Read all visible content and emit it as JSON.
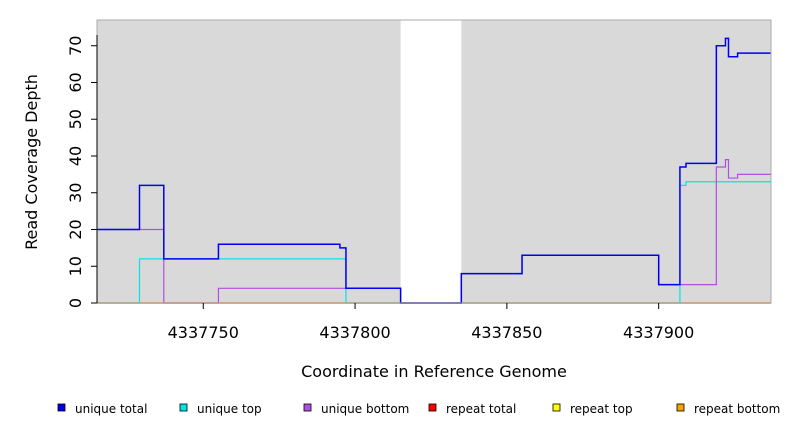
{
  "chart_data": {
    "type": "line",
    "title": "",
    "xlabel": "Coordinate in Reference Genome",
    "ylabel": "Read Coverage Depth",
    "xlim": [
      4337715,
      4337937
    ],
    "ylim": [
      0,
      77
    ],
    "x_ticks": [
      4337750,
      4337800,
      4337850,
      4337900
    ],
    "x_tick_labels": [
      "4337750",
      "4337800",
      "4337850",
      "4337900"
    ],
    "y_ticks": [
      0,
      10,
      20,
      30,
      40,
      50,
      60,
      70
    ],
    "y_tick_labels": [
      "0",
      "10",
      "20",
      "30",
      "40",
      "50",
      "60",
      "70"
    ],
    "background_color": "#d9d9d9",
    "gap_region": [
      4337815,
      4337835
    ],
    "step": true,
    "grid": false,
    "legend_position": "bottom",
    "series": [
      {
        "name": "unique total",
        "color": "#0000ee",
        "x": [
          4337715,
          4337729,
          4337737,
          4337755,
          4337795,
          4337797,
          4337815,
          4337835,
          4337855,
          4337900,
          4337907,
          4337909,
          4337912,
          4337919,
          4337922,
          4337923,
          4337926,
          4337937
        ],
        "y": [
          20,
          32,
          12,
          16,
          15,
          4,
          0,
          8,
          13,
          5,
          37,
          38,
          38,
          70,
          72,
          67,
          68,
          68
        ]
      },
      {
        "name": "unique top",
        "color": "#00e5e5",
        "x": [
          4337715,
          4337729,
          4337737,
          4337755,
          4337795,
          4337797,
          4337815,
          4337835,
          4337855,
          4337900,
          4337907,
          4337909,
          4337912,
          4337919,
          4337922,
          4337923,
          4337926,
          4337937
        ],
        "y": [
          0,
          12,
          12,
          12,
          12,
          0,
          0,
          0,
          0,
          0,
          32,
          33,
          33,
          33,
          33,
          33,
          33,
          33
        ]
      },
      {
        "name": "unique bottom",
        "color": "#b04fe0",
        "x": [
          4337715,
          4337729,
          4337737,
          4337755,
          4337795,
          4337797,
          4337815,
          4337835,
          4337855,
          4337900,
          4337907,
          4337909,
          4337912,
          4337919,
          4337922,
          4337923,
          4337926,
          4337937
        ],
        "y": [
          20,
          20,
          0,
          4,
          4,
          4,
          0,
          8,
          13,
          5,
          5,
          5,
          5,
          37,
          39,
          34,
          35,
          35
        ]
      },
      {
        "name": "repeat total",
        "color": "#ff0000",
        "x": [
          4337715,
          4337937
        ],
        "y": [
          0,
          0
        ]
      },
      {
        "name": "repeat top",
        "color": "#ffff00",
        "x": [
          4337715,
          4337937
        ],
        "y": [
          0,
          0
        ]
      },
      {
        "name": "repeat bottom",
        "color": "#f5a300",
        "x": [
          4337715,
          4337937
        ],
        "y": [
          0,
          0
        ]
      }
    ]
  }
}
